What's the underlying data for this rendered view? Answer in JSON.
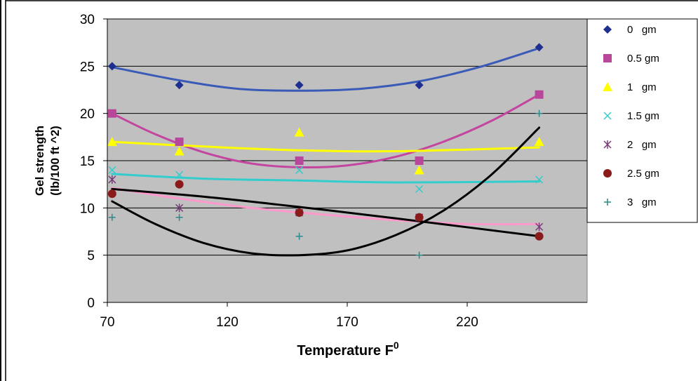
{
  "chart_data": {
    "type": "scatter",
    "xlabel": "Temperature F",
    "xlabel_superscript": "0",
    "ylabel_line1": "Gel strength",
    "ylabel_line2": "(lb/100 ft ^2)",
    "xlim": [
      70,
      270
    ],
    "ylim": [
      0,
      30
    ],
    "x_ticks": [
      70,
      120,
      170,
      220
    ],
    "y_ticks": [
      0,
      5,
      10,
      15,
      20,
      25,
      30
    ],
    "grid": true,
    "plot_background": "#c0c0c0",
    "legend_position": "right",
    "series": [
      {
        "name": "0   gm",
        "marker": "diamond",
        "marker_color": "#1f2f8f",
        "trend_color": "#3a5ab8",
        "x": [
          72,
          100,
          150,
          200,
          250
        ],
        "y": [
          25,
          23,
          23,
          23,
          27
        ],
        "trend_x": [
          72,
          100,
          125,
          150,
          175,
          200,
          225,
          250
        ],
        "trend_y": [
          24.9,
          23.5,
          22.6,
          22.4,
          22.6,
          23.4,
          24.9,
          26.9
        ]
      },
      {
        "name": "0.5 gm",
        "marker": "square",
        "marker_color": "#b8469b",
        "trend_color": "#c4459f",
        "x": [
          72,
          100,
          150,
          200,
          250
        ],
        "y": [
          20,
          17,
          15,
          15,
          22
        ],
        "trend_x": [
          72,
          90,
          110,
          130,
          150,
          170,
          190,
          210,
          230,
          250
        ],
        "trend_y": [
          20.0,
          17.8,
          15.9,
          14.7,
          14.3,
          14.5,
          15.4,
          17.0,
          19.2,
          22.0
        ]
      },
      {
        "name": "1   gm",
        "marker": "triangle",
        "marker_color": "#ffff00",
        "trend_color": "#ffff00",
        "x": [
          72,
          100,
          150,
          200,
          250
        ],
        "y": [
          17,
          16,
          18,
          14,
          17
        ],
        "trend_x": [
          72,
          110,
          150,
          190,
          250
        ],
        "trend_y": [
          17.0,
          16.5,
          16.1,
          16.0,
          16.4
        ]
      },
      {
        "name": "1.5 gm",
        "marker": "x",
        "marker_color": "#33cccc",
        "trend_color": "#33cccc",
        "x": [
          72,
          100,
          150,
          200,
          250
        ],
        "y": [
          14,
          13.5,
          14,
          12,
          13
        ],
        "trend_x": [
          72,
          110,
          150,
          190,
          250
        ],
        "trend_y": [
          13.6,
          13.1,
          12.9,
          12.7,
          12.8
        ]
      },
      {
        "name": "2   gm",
        "marker": "star",
        "marker_color": "#7a3a7a",
        "trend_color": "#ff99cc",
        "x": [
          72,
          100,
          150,
          200,
          250
        ],
        "y": [
          13,
          10,
          9.5,
          9,
          8
        ],
        "trend_x": [
          72,
          100,
          130,
          160,
          190,
          220,
          250
        ],
        "trend_y": [
          12.1,
          11.0,
          10.0,
          9.3,
          8.7,
          8.3,
          8.3
        ]
      },
      {
        "name": "2.5 gm",
        "marker": "circle",
        "marker_color": "#8b1a1a",
        "trend_color": "#000000",
        "x": [
          72,
          100,
          150,
          200,
          250
        ],
        "y": [
          11.5,
          12.5,
          9.5,
          9,
          7
        ],
        "trend_x": [
          72,
          110,
          150,
          190,
          250
        ],
        "trend_y": [
          12.0,
          11.2,
          10.1,
          8.9,
          7.0
        ]
      },
      {
        "name": "3   gm",
        "marker": "plus",
        "marker_color": "#2a8a8a",
        "trend_color": "#000000",
        "x": [
          72,
          100,
          150,
          200,
          250
        ],
        "y": [
          9,
          9,
          7,
          5,
          20
        ],
        "trend_x": [
          72,
          90,
          110,
          130,
          150,
          170,
          190,
          210,
          230,
          250
        ],
        "trend_y": [
          10.7,
          8.3,
          6.3,
          5.2,
          5.0,
          5.5,
          7.1,
          9.7,
          13.5,
          18.5
        ]
      }
    ]
  }
}
